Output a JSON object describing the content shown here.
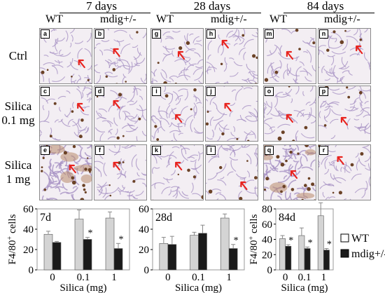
{
  "figure": {
    "time_headers": [
      {
        "label": "7 days",
        "wt": "WT",
        "mdig": "mdig+/-"
      },
      {
        "label": "28 days",
        "wt": "WT",
        "mdig": "mdig+/-"
      },
      {
        "label": "84 days",
        "wt": "WT",
        "mdig": "mdig+/-"
      }
    ],
    "row_labels": [
      {
        "line1": "Ctrl",
        "line2": ""
      },
      {
        "line1": "Silica",
        "line2": "0.1 mg"
      },
      {
        "line1": "Silica",
        "line2": "1 mg"
      }
    ],
    "panel_letters": [
      [
        "a",
        "b",
        "g",
        "h",
        "m",
        "n"
      ],
      [
        "c",
        "d",
        "i",
        "j",
        "o",
        "p"
      ],
      [
        "e",
        "f",
        "k",
        "l",
        "q",
        "r"
      ]
    ],
    "colors": {
      "wt_bar": "#d4d4d4",
      "mdig_bar": "#1a1a1a",
      "arrow": "#e8231e",
      "tissue_bg": "#f3eef3",
      "stain_purple": "#a892c4",
      "stain_brown": "#6b4226"
    }
  },
  "chart_data": [
    {
      "type": "bar",
      "title": "7d",
      "ylabel": "F4/80+ cells",
      "ylabel_main": "F4/80",
      "ylabel_sup": "+",
      "ylabel_rest": " cells",
      "xlabel": "Silica (mg)",
      "categories": [
        "0",
        "0.1",
        "1"
      ],
      "ylim": [
        0,
        60
      ],
      "yticks": [
        "0",
        "20",
        "40",
        "60"
      ],
      "series": [
        {
          "name": "WT",
          "values": [
            35,
            50,
            51
          ],
          "errors": [
            3,
            9,
            6
          ]
        },
        {
          "name": "mdig+/-",
          "values": [
            27,
            30,
            21
          ],
          "errors": [
            1,
            2,
            5
          ]
        }
      ],
      "annotations": [
        "",
        "*",
        "*"
      ]
    },
    {
      "type": "bar",
      "title": "28d",
      "ylabel": "",
      "xlabel": "Silica (mg)",
      "categories": [
        "0",
        "0.1",
        "1"
      ],
      "ylim": [
        0,
        60
      ],
      "yticks": [
        "0",
        "20",
        "40",
        "60"
      ],
      "series": [
        {
          "name": "WT",
          "values": [
            26,
            34,
            51
          ],
          "errors": [
            6,
            3,
            4
          ]
        },
        {
          "name": "mdig+/-",
          "values": [
            25,
            36,
            21
          ],
          "errors": [
            8,
            8,
            4
          ]
        }
      ],
      "annotations": [
        "",
        "",
        "*"
      ]
    },
    {
      "type": "bar",
      "title": "84d",
      "ylabel": "F4/80+ cells",
      "ylabel_main": "F4/80",
      "ylabel_sup": "+",
      "ylabel_rest": " cells",
      "xlabel": "Silica (mg)",
      "categories": [
        "0",
        "0.1",
        "1"
      ],
      "ylim": [
        0,
        80
      ],
      "yticks": [
        "0",
        "20",
        "40",
        "60",
        "80"
      ],
      "series": [
        {
          "name": "WT",
          "values": [
            41,
            45,
            71
          ],
          "errors": [
            4,
            10,
            17
          ]
        },
        {
          "name": "mdig+/-",
          "values": [
            31,
            28,
            26
          ],
          "errors": [
            2,
            2,
            2
          ]
        }
      ],
      "annotations": [
        "*",
        "*",
        "*"
      ],
      "legend": [
        {
          "label": "WT"
        },
        {
          "label": "mdig+/-"
        }
      ]
    }
  ]
}
